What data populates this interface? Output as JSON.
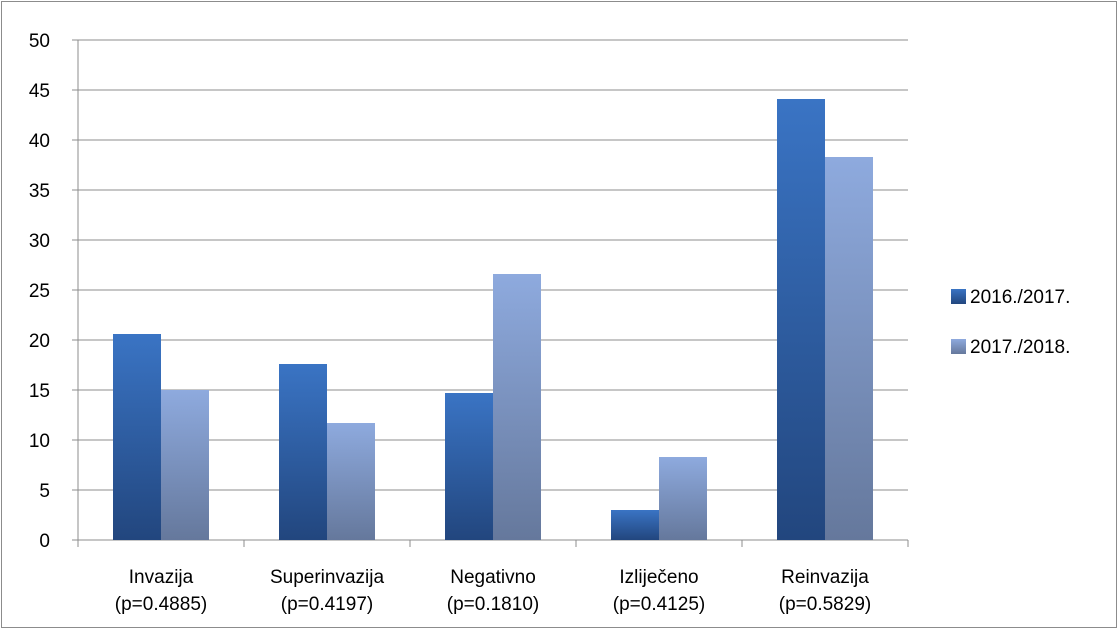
{
  "chart_data": {
    "type": "bar",
    "categories": [
      [
        "Invazija",
        "(p=0.4885)"
      ],
      [
        "Superinvazija",
        "(p=0.4197)"
      ],
      [
        "Negativno",
        "(p=0.1810)"
      ],
      [
        "Izliječeno",
        "(p=0.4125)"
      ],
      [
        "Reinvazija",
        "(p=0.5829)"
      ]
    ],
    "series": [
      {
        "name": "2016./2017.",
        "values": [
          20.6,
          17.6,
          14.7,
          3.0,
          44.1
        ],
        "color_top": "#3a74c4",
        "color_bottom": "#22467e"
      },
      {
        "name": "2017./2018.",
        "values": [
          15.0,
          11.7,
          26.6,
          8.3,
          38.3
        ],
        "color_top": "#8eaade",
        "color_bottom": "#65789c"
      }
    ],
    "ylim": [
      0,
      50
    ],
    "yticks": [
      0,
      5,
      10,
      15,
      20,
      25,
      30,
      35,
      40,
      45,
      50
    ],
    "grid": true,
    "legend_position": "right",
    "title": "",
    "xlabel": "",
    "ylabel": ""
  }
}
